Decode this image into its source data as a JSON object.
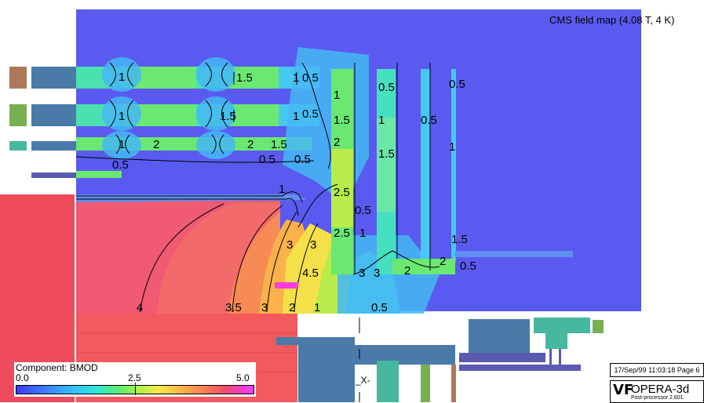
{
  "title": "CMS field map (4.08 T, 4 K)",
  "legend": {
    "component": "Component: BMOD",
    "min": "0.0",
    "mid": "2.5",
    "max": "5.0"
  },
  "stamp": "17/Sep/99 11:03:18 Page 6",
  "logo": {
    "mark": "VF",
    "name": "OPERA-3d",
    "sub": "Post-processor 2.601"
  },
  "axis_fragment": "_X-",
  "contour_labels": [
    "1",
    "1.5",
    "1",
    "0.5",
    "0.5",
    "0.5",
    "1",
    "1",
    "1.5",
    "1",
    "0.5",
    "1.5",
    "1",
    "0.5",
    "1",
    "2",
    "2",
    "1.5",
    "2",
    "1.5",
    "0.5",
    "0.5",
    "0.5",
    "1",
    "1",
    "2.5",
    "0.5",
    "2.5",
    "1",
    "1.5",
    "3",
    "3",
    "3",
    "3",
    "2",
    "2",
    "0.5",
    "4.5",
    "4",
    "3.5",
    "3",
    "2",
    "1",
    "0.5"
  ],
  "colors": {
    "background_field": "#5a5af0",
    "yoke_steel": "#f25a5e",
    "low_field": "#46c8f0",
    "mid_field": "#6af06a",
    "high_field": "#f5a04a"
  }
}
